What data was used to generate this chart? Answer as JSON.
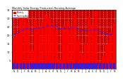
{
  "title": "Monthly Solar Energy Production Running Average",
  "bar_color": "#ff0000",
  "avg_color": "#2222ff",
  "dot_color": "#2222ff",
  "plot_bg_color": "#cc0000",
  "fig_bg_color": "#ffffff",
  "grid_color": "#ffffff",
  "monthly_values": [
    18.0,
    21.0,
    33.0,
    35.0,
    27.0,
    11.0,
    29.0,
    25.0,
    28.0,
    32.0,
    30.0,
    27.0,
    23.0,
    5.5,
    25.0,
    28.0,
    25.0,
    32.0,
    17.0,
    9.0,
    15.0,
    31.0,
    26.5,
    35.0,
    3.0,
    7.5,
    14.5,
    21.5,
    27.0
  ],
  "running_avg": [
    20.0,
    21.0,
    22.5,
    23.5,
    24.0,
    23.0,
    24.0,
    24.0,
    24.5,
    25.0,
    25.5,
    25.5,
    25.0,
    23.5,
    23.8,
    24.0,
    24.0,
    24.5,
    24.0,
    23.0,
    22.5,
    23.0,
    23.0,
    23.5,
    22.0,
    21.0,
    20.5,
    20.5,
    21.0
  ],
  "ylim": [
    0,
    35
  ],
  "ytick_values": [
    5,
    10,
    15,
    20,
    25,
    30,
    35
  ],
  "small_bar_height": 3.5
}
